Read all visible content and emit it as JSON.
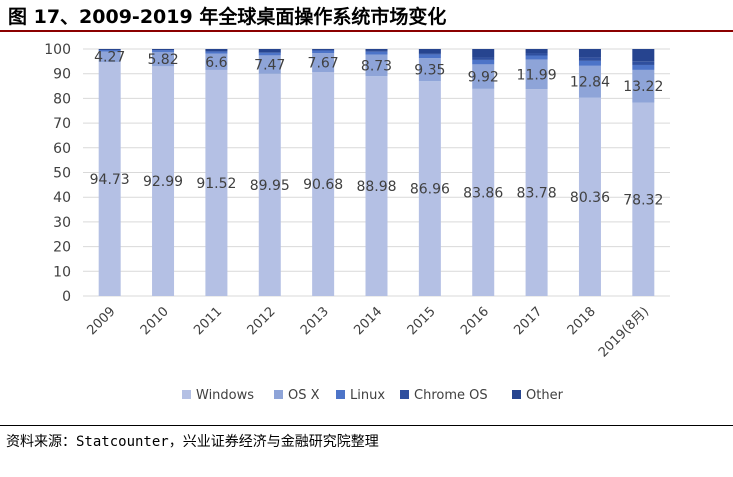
{
  "figure_title": "图 17、2009-2019 年全球桌面操作系统市场变化",
  "source_text": "资料来源：Statcounter，兴业证券经济与金融研究院整理",
  "chart_data": {
    "type": "stacked-bar",
    "title": "",
    "categories": [
      "2009",
      "2010",
      "2011",
      "2012",
      "2013",
      "2014",
      "2015",
      "2016",
      "2017",
      "2018",
      "2019(8月)"
    ],
    "ylim": [
      0,
      100
    ],
    "yticks": [
      0,
      10,
      20,
      30,
      40,
      50,
      60,
      70,
      80,
      90,
      100
    ],
    "series": [
      {
        "name": "Windows",
        "color": "#b4c0e4",
        "values": [
          94.73,
          92.99,
          91.52,
          89.95,
          90.68,
          88.98,
          86.96,
          83.86,
          83.78,
          80.36,
          78.32
        ]
      },
      {
        "name": "OS X",
        "color": "#8ea4d8",
        "values": [
          4.27,
          5.82,
          6.6,
          7.47,
          7.67,
          8.73,
          9.35,
          9.92,
          11.99,
          12.84,
          13.22
        ]
      },
      {
        "name": "Linux",
        "color": "#4d74c8",
        "values": [
          0.6,
          0.75,
          0.9,
          1.2,
          1.1,
          1.2,
          1.5,
          1.8,
          1.6,
          2.0,
          2.0
        ]
      },
      {
        "name": "Chrome OS",
        "color": "#2f4f9e",
        "values": [
          0.0,
          0.0,
          0.0,
          0.05,
          0.15,
          0.3,
          0.4,
          1.0,
          1.0,
          1.4,
          1.5
        ]
      },
      {
        "name": "Other",
        "color": "#26448f",
        "values": [
          0.4,
          0.44,
          0.98,
          1.33,
          0.4,
          0.79,
          1.79,
          3.42,
          1.63,
          3.4,
          4.96
        ]
      }
    ],
    "labeled_series": [
      "Windows",
      "OS X"
    ],
    "legend_position": "bottom"
  }
}
